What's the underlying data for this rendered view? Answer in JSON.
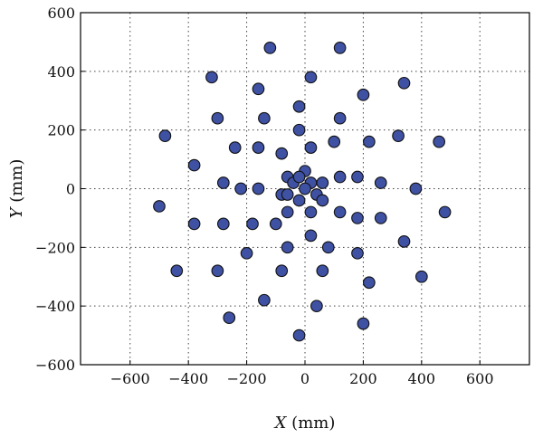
{
  "chart_data": {
    "type": "scatter",
    "title": "",
    "xlabel": {
      "var": "X",
      "unit": " (mm)"
    },
    "ylabel": {
      "var": "Y",
      "unit": " (mm)"
    },
    "xlim": [
      -770,
      770
    ],
    "ylim": [
      -600,
      600
    ],
    "xticks": [
      -600,
      -400,
      -200,
      0,
      200,
      400,
      600
    ],
    "yticks": [
      -600,
      -400,
      -200,
      0,
      200,
      400,
      600
    ],
    "xtick_labels": [
      "−600",
      "−400",
      "−200",
      "0",
      "200",
      "400",
      "600"
    ],
    "ytick_labels": [
      "−600",
      "−400",
      "−200",
      "0",
      "200",
      "400",
      "600"
    ],
    "grid": true,
    "grid_style": "dotted",
    "marker_color": "#3f51a3",
    "marker_edge_color": "#111111",
    "points": [
      {
        "x": -120,
        "y": 480
      },
      {
        "x": 120,
        "y": 480
      },
      {
        "x": -320,
        "y": 380
      },
      {
        "x": 20,
        "y": 380
      },
      {
        "x": -160,
        "y": 340
      },
      {
        "x": 340,
        "y": 360
      },
      {
        "x": 200,
        "y": 320
      },
      {
        "x": -20,
        "y": 280
      },
      {
        "x": -300,
        "y": 240
      },
      {
        "x": -140,
        "y": 240
      },
      {
        "x": 120,
        "y": 240
      },
      {
        "x": -480,
        "y": 180
      },
      {
        "x": -20,
        "y": 200
      },
      {
        "x": 320,
        "y": 180
      },
      {
        "x": 460,
        "y": 160
      },
      {
        "x": -240,
        "y": 140
      },
      {
        "x": -160,
        "y": 140
      },
      {
        "x": -80,
        "y": 120
      },
      {
        "x": 20,
        "y": 140
      },
      {
        "x": 100,
        "y": 160
      },
      {
        "x": 220,
        "y": 160
      },
      {
        "x": -380,
        "y": 80
      },
      {
        "x": 0,
        "y": 60
      },
      {
        "x": -280,
        "y": 20
      },
      {
        "x": -220,
        "y": 0
      },
      {
        "x": -160,
        "y": 0
      },
      {
        "x": -60,
        "y": 40
      },
      {
        "x": -40,
        "y": 20
      },
      {
        "x": -20,
        "y": 40
      },
      {
        "x": 20,
        "y": 20
      },
      {
        "x": 60,
        "y": 20
      },
      {
        "x": 120,
        "y": 40
      },
      {
        "x": 180,
        "y": 40
      },
      {
        "x": 260,
        "y": 20
      },
      {
        "x": 380,
        "y": 0
      },
      {
        "x": -80,
        "y": -20
      },
      {
        "x": -60,
        "y": -20
      },
      {
        "x": 0,
        "y": 0
      },
      {
        "x": -20,
        "y": -40
      },
      {
        "x": 40,
        "y": -20
      },
      {
        "x": 60,
        "y": -40
      },
      {
        "x": 20,
        "y": -80
      },
      {
        "x": -60,
        "y": -80
      },
      {
        "x": 480,
        "y": -80
      },
      {
        "x": -500,
        "y": -60
      },
      {
        "x": -380,
        "y": -120
      },
      {
        "x": -280,
        "y": -120
      },
      {
        "x": -180,
        "y": -120
      },
      {
        "x": -100,
        "y": -120
      },
      {
        "x": 120,
        "y": -80
      },
      {
        "x": 180,
        "y": -100
      },
      {
        "x": 260,
        "y": -100
      },
      {
        "x": 20,
        "y": -160
      },
      {
        "x": -60,
        "y": -200
      },
      {
        "x": 80,
        "y": -200
      },
      {
        "x": -200,
        "y": -220
      },
      {
        "x": 180,
        "y": -220
      },
      {
        "x": 340,
        "y": -180
      },
      {
        "x": -440,
        "y": -280
      },
      {
        "x": -300,
        "y": -280
      },
      {
        "x": -80,
        "y": -280
      },
      {
        "x": 60,
        "y": -280
      },
      {
        "x": 220,
        "y": -320
      },
      {
        "x": 400,
        "y": -300
      },
      {
        "x": -140,
        "y": -380
      },
      {
        "x": 40,
        "y": -400
      },
      {
        "x": -260,
        "y": -440
      },
      {
        "x": 200,
        "y": -460
      },
      {
        "x": -20,
        "y": -500
      }
    ]
  }
}
